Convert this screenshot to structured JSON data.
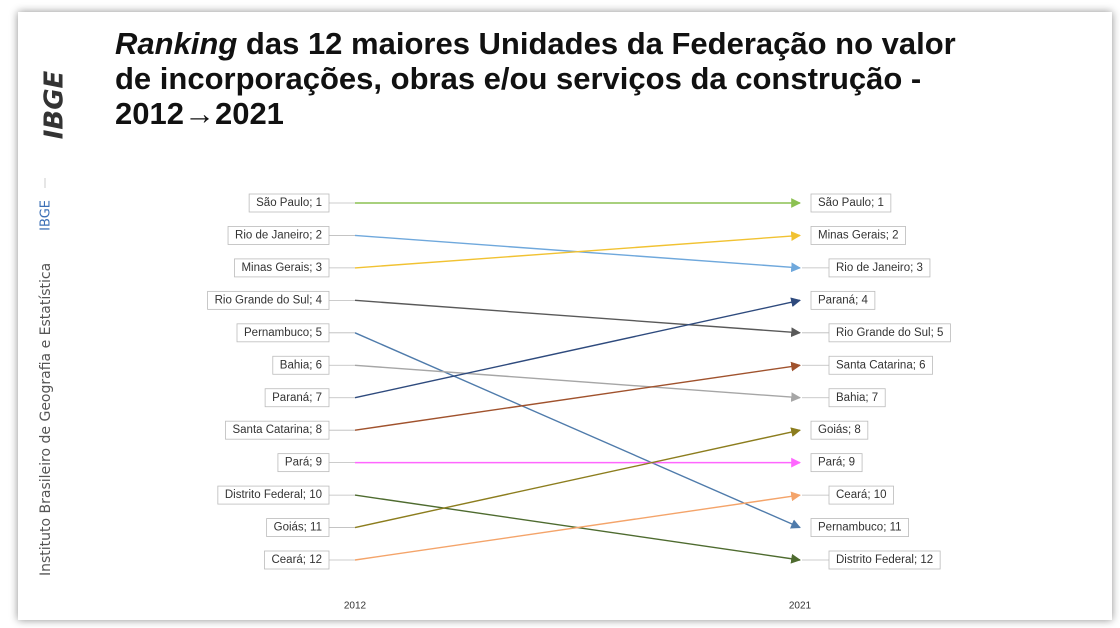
{
  "sidebar": {
    "logo": "IBGE",
    "institute": "Instituto Brasileiro de Geografia e Estatística",
    "short": "IBGE"
  },
  "chart_data": {
    "type": "slope",
    "title": {
      "italic": "Ranking",
      "lines": [
        " das 12 maiores Unidades da Federação no valor",
        "de incorporações, obras e/ou serviços da construção -",
        "2012→2021"
      ]
    },
    "categories": [
      "2012",
      "2021"
    ],
    "ylim": [
      12,
      1
    ],
    "series": [
      {
        "color": "#8cc152",
        "values": [
          1,
          1
        ],
        "value_labels": [
          "São Paulo; 1",
          "São Paulo; 1"
        ]
      },
      {
        "color": "#6fa8dc",
        "values": [
          2,
          3
        ],
        "value_labels": [
          "Rio de Janeiro; 2",
          "Rio de Janeiro; 3"
        ]
      },
      {
        "color": "#f1c232",
        "values": [
          3,
          2
        ],
        "value_labels": [
          "Minas Gerais; 3",
          "Minas Gerais; 2"
        ]
      },
      {
        "color": "#595959",
        "values": [
          4,
          5
        ],
        "value_labels": [
          "Rio Grande do Sul; 4",
          "Rio Grande do Sul; 5"
        ]
      },
      {
        "color": "#4f7bab",
        "values": [
          5,
          11
        ],
        "value_labels": [
          "Pernambuco; 5",
          "Pernambuco; 11"
        ]
      },
      {
        "color": "#a6a6a6",
        "values": [
          6,
          7
        ],
        "value_labels": [
          "Bahia; 6",
          "Bahia; 7"
        ]
      },
      {
        "color": "#2e4a7d",
        "values": [
          7,
          4
        ],
        "value_labels": [
          "Paraná; 7",
          "Paraná; 4"
        ]
      },
      {
        "color": "#a0522d",
        "values": [
          8,
          6
        ],
        "value_labels": [
          "Santa Catarina; 8",
          "Santa Catarina; 6"
        ]
      },
      {
        "color": "#ff66ff",
        "values": [
          9,
          9
        ],
        "value_labels": [
          "Pará; 9",
          "Pará; 9"
        ]
      },
      {
        "color": "#4e6b2f",
        "values": [
          10,
          12
        ],
        "value_labels": [
          "Distrito Federal; 10",
          "Distrito Federal; 12"
        ]
      },
      {
        "color": "#8c7d1e",
        "values": [
          11,
          8
        ],
        "value_labels": [
          "Goiás; 11",
          "Goiás; 8"
        ]
      },
      {
        "color": "#f4a46a",
        "values": [
          12,
          10
        ],
        "value_labels": [
          "Ceará; 12",
          "Ceará; 10"
        ]
      }
    ]
  }
}
